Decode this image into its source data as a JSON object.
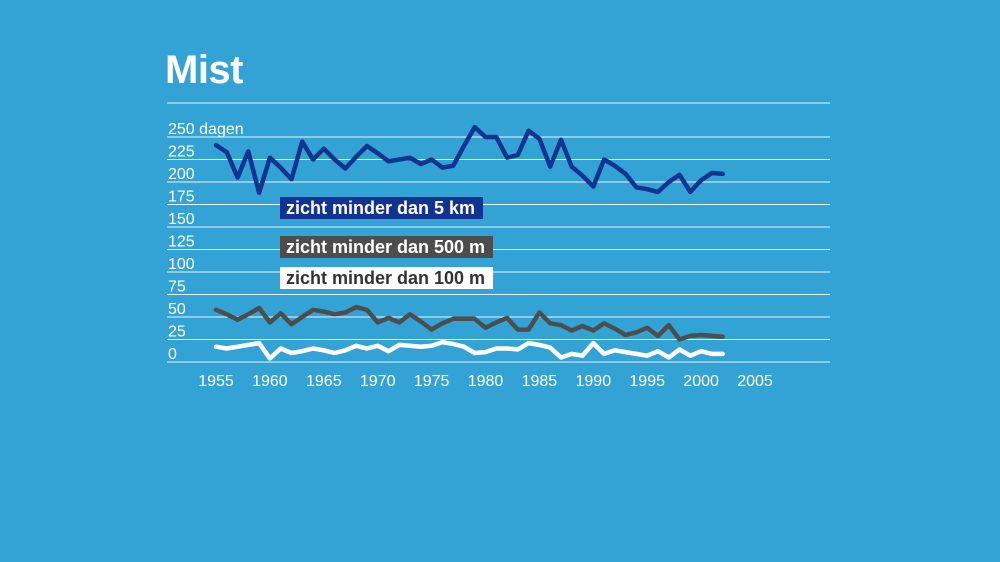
{
  "chart_data": {
    "type": "line",
    "title": "Mist",
    "y_unit_label": "dagen",
    "ylim": [
      0,
      250
    ],
    "yticks": [
      0,
      25,
      50,
      75,
      100,
      125,
      150,
      175,
      200,
      225,
      250
    ],
    "ytick_labels": [
      "0",
      "25",
      "50",
      "75",
      "100",
      "125",
      "150",
      "175",
      "200",
      "225",
      "250 dagen"
    ],
    "xlim": [
      1950,
      2010
    ],
    "xticks": [
      1955,
      1960,
      1965,
      1970,
      1975,
      1980,
      1985,
      1990,
      1995,
      2000,
      2005
    ],
    "grid": true,
    "legend_position": "left",
    "x": [
      1955,
      1956,
      1957,
      1958,
      1959,
      1960,
      1961,
      1962,
      1963,
      1964,
      1965,
      1966,
      1967,
      1968,
      1969,
      1970,
      1971,
      1972,
      1973,
      1974,
      1975,
      1976,
      1977,
      1978,
      1979,
      1980,
      1981,
      1982,
      1983,
      1984,
      1985,
      1986,
      1987,
      1988,
      1989,
      1990,
      1991,
      1992,
      1993,
      1994,
      1995,
      1996,
      1997,
      1998,
      1999,
      2000,
      2001,
      2002
    ],
    "series": [
      {
        "name": "zicht minder dan 5 km",
        "color": "#12338f",
        "text_color": "#ffffff",
        "values": [
          241,
          233,
          205,
          234,
          188,
          227,
          216,
          203,
          245,
          225,
          237,
          225,
          215,
          228,
          240,
          232,
          223,
          225,
          227,
          220,
          225,
          216,
          218,
          240,
          261,
          250,
          250,
          227,
          230,
          257,
          248,
          217,
          247,
          217,
          207,
          195,
          225,
          218,
          209,
          194,
          192,
          189,
          200,
          208,
          189,
          202,
          210,
          209
        ]
      },
      {
        "name": "zicht minder dan 500 m",
        "color": "#4d4d4d",
        "text_color": "#ffffff",
        "values": [
          58,
          53,
          47,
          53,
          60,
          44,
          54,
          42,
          50,
          58,
          56,
          53,
          55,
          61,
          58,
          44,
          49,
          44,
          53,
          45,
          36,
          43,
          48,
          48,
          48,
          38,
          44,
          49,
          36,
          36,
          55,
          43,
          41,
          35,
          40,
          35,
          43,
          37,
          30,
          33,
          38,
          29,
          41,
          25,
          29,
          30,
          29,
          28
        ]
      },
      {
        "name": "zicht minder dan 100 m",
        "color": "#ffffff",
        "text_color": "#333333",
        "values": [
          17,
          15,
          17,
          19,
          21,
          4,
          15,
          10,
          12,
          15,
          13,
          10,
          13,
          18,
          15,
          18,
          12,
          19,
          18,
          17,
          18,
          22,
          20,
          17,
          10,
          11,
          15,
          15,
          14,
          21,
          19,
          16,
          5,
          9,
          7,
          21,
          9,
          13,
          11,
          9,
          7,
          12,
          5,
          14,
          7,
          12,
          9,
          9
        ]
      }
    ]
  }
}
